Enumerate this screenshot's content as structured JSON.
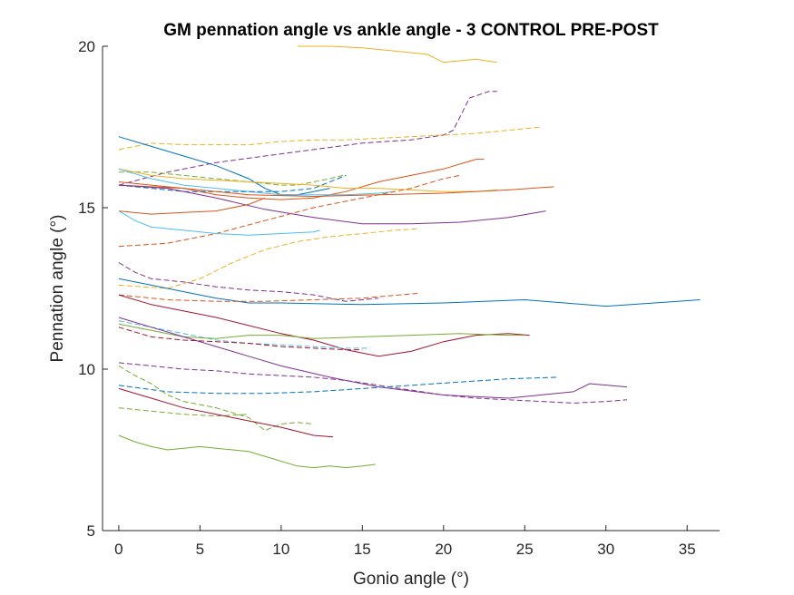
{
  "chart_data": {
    "type": "line",
    "title": "GM pennation angle vs ankle angle - 3 CONTROL PRE-POST",
    "xlabel": "Gonio angle (°)",
    "ylabel": "Pennation angle (°)",
    "xlim": [
      -1,
      37
    ],
    "ylim": [
      5,
      20
    ],
    "xticks": [
      0,
      5,
      10,
      15,
      20,
      25,
      30,
      35
    ],
    "yticks": [
      5,
      10,
      15,
      20
    ],
    "grid": false,
    "box": "left-bottom",
    "series": [
      {
        "color": "#EDB120",
        "dash": "solid",
        "x": [
          11,
          13,
          15,
          17,
          19,
          20,
          21,
          22,
          23.3
        ],
        "y": [
          20.0,
          20.0,
          19.95,
          19.85,
          19.75,
          19.5,
          19.55,
          19.6,
          19.5
        ]
      },
      {
        "color": "#7E2F8E",
        "dash": "dashed",
        "x": [
          0,
          3,
          6,
          9,
          12,
          15,
          18,
          20,
          20.6,
          21.2,
          21.6,
          22.2,
          22.8,
          23.3
        ],
        "y": [
          15.7,
          16.1,
          16.4,
          16.6,
          16.8,
          17.0,
          17.1,
          17.25,
          17.4,
          18.0,
          18.4,
          18.5,
          18.6,
          18.6
        ]
      },
      {
        "color": "#EDB120",
        "dash": "dashed",
        "x": [
          0,
          2,
          4,
          6,
          8,
          10,
          12,
          14,
          16,
          18,
          20,
          22,
          24,
          26
        ],
        "y": [
          16.8,
          17.0,
          16.95,
          16.95,
          16.95,
          17.05,
          17.1,
          17.1,
          17.15,
          17.2,
          17.25,
          17.3,
          17.4,
          17.5
        ]
      },
      {
        "color": "#0072BD",
        "dash": "solid",
        "x": [
          0,
          2,
          4,
          6,
          8,
          9,
          10,
          11,
          12,
          13
        ],
        "y": [
          17.2,
          16.9,
          16.6,
          16.3,
          15.9,
          15.6,
          15.4,
          15.4,
          15.5,
          15.6
        ]
      },
      {
        "color": "#D95319",
        "dash": "solid",
        "x": [
          0,
          2,
          4,
          6,
          8,
          10,
          12,
          14,
          16,
          18,
          20,
          22,
          22.5
        ],
        "y": [
          15.8,
          15.7,
          15.6,
          15.4,
          15.3,
          15.25,
          15.3,
          15.5,
          15.8,
          16.0,
          16.2,
          16.5,
          16.5
        ]
      },
      {
        "color": "#77AC30",
        "dash": "dashed",
        "x": [
          0,
          2,
          4,
          6,
          8,
          10,
          11,
          12,
          13,
          13.8
        ],
        "y": [
          16.1,
          16.1,
          16.0,
          15.9,
          15.8,
          15.7,
          15.7,
          15.8,
          15.9,
          16.0
        ]
      },
      {
        "color": "#EDB120",
        "dash": "solid",
        "x": [
          0,
          2,
          4,
          6,
          8,
          10,
          12,
          14,
          16,
          18,
          20,
          22,
          23.3
        ],
        "y": [
          16.2,
          16.0,
          15.9,
          15.85,
          15.8,
          15.75,
          15.7,
          15.6,
          15.6,
          15.55,
          15.5,
          15.5,
          15.55
        ]
      },
      {
        "color": "#4DBEEE",
        "dash": "solid",
        "x": [
          0,
          2,
          4,
          6,
          8,
          10,
          12,
          14,
          16,
          17
        ],
        "y": [
          16.2,
          15.9,
          15.7,
          15.6,
          15.5,
          15.4,
          15.4,
          15.4,
          15.45,
          15.5
        ]
      },
      {
        "color": "#0072BD",
        "dash": "dashed",
        "x": [
          0,
          2,
          4,
          6,
          8,
          10,
          12,
          14
        ],
        "y": [
          15.7,
          15.6,
          15.5,
          15.5,
          15.5,
          15.5,
          15.6,
          16.0
        ]
      },
      {
        "color": "#D95319",
        "dash": "solid",
        "x": [
          0,
          4,
          8,
          12,
          16,
          20,
          24,
          26.8
        ],
        "y": [
          15.7,
          15.6,
          15.4,
          15.35,
          15.4,
          15.45,
          15.55,
          15.65
        ]
      },
      {
        "color": "#7E2F8E",
        "dash": "solid",
        "x": [
          0,
          3,
          6,
          9,
          12,
          15,
          18,
          21,
          24,
          26.3
        ],
        "y": [
          15.7,
          15.6,
          15.3,
          14.95,
          14.7,
          14.5,
          14.5,
          14.55,
          14.7,
          14.9
        ]
      },
      {
        "color": "#D95319",
        "dash": "dashed",
        "x": [
          0,
          3,
          6,
          9,
          12,
          15,
          18,
          20,
          21
        ],
        "y": [
          13.8,
          13.9,
          14.2,
          14.6,
          15.0,
          15.3,
          15.6,
          15.9,
          16.0
        ]
      },
      {
        "color": "#D95319",
        "dash": "solid",
        "x": [
          0,
          2,
          4,
          6,
          8,
          9
        ],
        "y": [
          14.9,
          14.8,
          14.85,
          14.9,
          15.1,
          15.3
        ]
      },
      {
        "color": "#4DBEEE",
        "dash": "solid",
        "x": [
          0,
          1,
          2,
          4,
          6,
          8,
          10,
          12,
          12.4
        ],
        "y": [
          14.9,
          14.6,
          14.4,
          14.3,
          14.2,
          14.15,
          14.2,
          14.25,
          14.3
        ]
      },
      {
        "color": "#EDB120",
        "dash": "dashed",
        "x": [
          0,
          3,
          5,
          7,
          9,
          11,
          13,
          15,
          17,
          18.5
        ],
        "y": [
          12.6,
          12.5,
          12.8,
          13.3,
          13.7,
          13.95,
          14.1,
          14.2,
          14.3,
          14.35
        ]
      },
      {
        "color": "#7E2F8E",
        "dash": "dashed",
        "x": [
          0,
          1,
          2,
          4,
          6,
          8,
          10,
          12,
          13,
          14,
          15,
          16
        ],
        "y": [
          13.3,
          13.0,
          12.8,
          12.7,
          12.55,
          12.45,
          12.4,
          12.3,
          12.2,
          12.1,
          12.15,
          12.2
        ]
      },
      {
        "color": "#0072BD",
        "dash": "solid",
        "x": [
          0,
          2,
          4,
          6,
          8,
          10,
          15,
          20,
          25,
          30,
          33,
          35.8
        ],
        "y": [
          12.8,
          12.6,
          12.4,
          12.2,
          12.05,
          12.05,
          12.0,
          12.05,
          12.15,
          11.95,
          12.05,
          12.15
        ]
      },
      {
        "color": "#D95319",
        "dash": "dashed",
        "x": [
          0,
          3,
          6,
          9,
          12,
          15,
          18.5
        ],
        "y": [
          12.3,
          12.15,
          12.1,
          12.1,
          12.15,
          12.2,
          12.35
        ]
      },
      {
        "color": "#A2142F",
        "dash": "solid",
        "x": [
          0,
          2,
          4,
          6,
          8,
          10,
          12,
          14,
          16,
          18,
          20,
          22,
          24,
          25.3
        ],
        "y": [
          12.3,
          12.0,
          11.8,
          11.6,
          11.35,
          11.1,
          10.9,
          10.6,
          10.4,
          10.55,
          10.85,
          11.05,
          11.1,
          11.05
        ]
      },
      {
        "color": "#4DBEEE",
        "dash": "dashed",
        "x": [
          0,
          2,
          4,
          5,
          6,
          8,
          10,
          12,
          14,
          15.5
        ],
        "y": [
          11.5,
          11.3,
          11.1,
          11.0,
          10.9,
          10.8,
          10.75,
          10.7,
          10.65,
          10.65
        ]
      },
      {
        "color": "#77AC30",
        "dash": "solid",
        "x": [
          0,
          2,
          4,
          6,
          8,
          10,
          12,
          15,
          18,
          21,
          24,
          25
        ],
        "y": [
          11.4,
          11.2,
          11.0,
          10.95,
          11.05,
          11.05,
          10.95,
          11.0,
          11.05,
          11.1,
          11.05,
          11.05
        ]
      },
      {
        "color": "#7E2F8E",
        "dash": "solid",
        "x": [
          0,
          2,
          4,
          6,
          8,
          10,
          13,
          16,
          20,
          24,
          28,
          29,
          31.3
        ],
        "y": [
          11.6,
          11.3,
          11.0,
          10.7,
          10.4,
          10.1,
          9.75,
          9.45,
          9.2,
          9.1,
          9.3,
          9.55,
          9.45
        ]
      },
      {
        "color": "#7E2F8E",
        "dash": "dashed",
        "x": [
          0,
          2,
          4,
          6,
          8,
          10,
          12,
          14,
          16,
          18,
          20,
          22,
          24,
          26,
          28,
          30,
          31.3
        ],
        "y": [
          10.2,
          10.1,
          10.0,
          9.95,
          9.85,
          9.8,
          9.75,
          9.65,
          9.5,
          9.35,
          9.2,
          9.1,
          9.05,
          9.0,
          8.95,
          9.0,
          9.05
        ]
      },
      {
        "color": "#A2142F",
        "dash": "dashed",
        "x": [
          0,
          2,
          4,
          6,
          8,
          10,
          12,
          14,
          15
        ],
        "y": [
          11.3,
          11.0,
          10.9,
          10.85,
          10.8,
          10.7,
          10.65,
          10.6,
          10.6
        ]
      },
      {
        "color": "#0072BD",
        "dash": "dashed",
        "x": [
          0,
          3,
          6,
          9,
          12,
          15,
          18,
          21,
          24,
          27
        ],
        "y": [
          9.5,
          9.3,
          9.25,
          9.25,
          9.3,
          9.4,
          9.5,
          9.6,
          9.7,
          9.75
        ]
      },
      {
        "color": "#77AC30",
        "dash": "dashed",
        "x": [
          0,
          1,
          2,
          3,
          4,
          6,
          8,
          9,
          10,
          11,
          12
        ],
        "y": [
          10.1,
          9.8,
          9.55,
          9.2,
          9.0,
          8.8,
          8.5,
          8.1,
          8.3,
          8.35,
          8.3
        ]
      },
      {
        "color": "#77AC30",
        "dash": "dashed",
        "x": [
          0,
          2,
          4,
          6,
          8
        ],
        "y": [
          8.8,
          8.7,
          8.6,
          8.55,
          8.6
        ]
      },
      {
        "color": "#A2142F",
        "dash": "solid",
        "x": [
          0,
          2,
          4,
          6,
          8,
          10,
          12,
          13.2
        ],
        "y": [
          9.4,
          9.1,
          8.8,
          8.6,
          8.4,
          8.2,
          7.95,
          7.9
        ]
      },
      {
        "color": "#77AC30",
        "dash": "solid",
        "x": [
          0,
          1,
          2,
          3,
          4,
          5,
          6,
          8,
          10,
          11,
          12,
          13,
          14,
          15,
          15.8
        ],
        "y": [
          7.95,
          7.75,
          7.6,
          7.5,
          7.55,
          7.6,
          7.55,
          7.45,
          7.15,
          7.0,
          6.95,
          7.0,
          6.95,
          7.0,
          7.05
        ]
      }
    ]
  }
}
